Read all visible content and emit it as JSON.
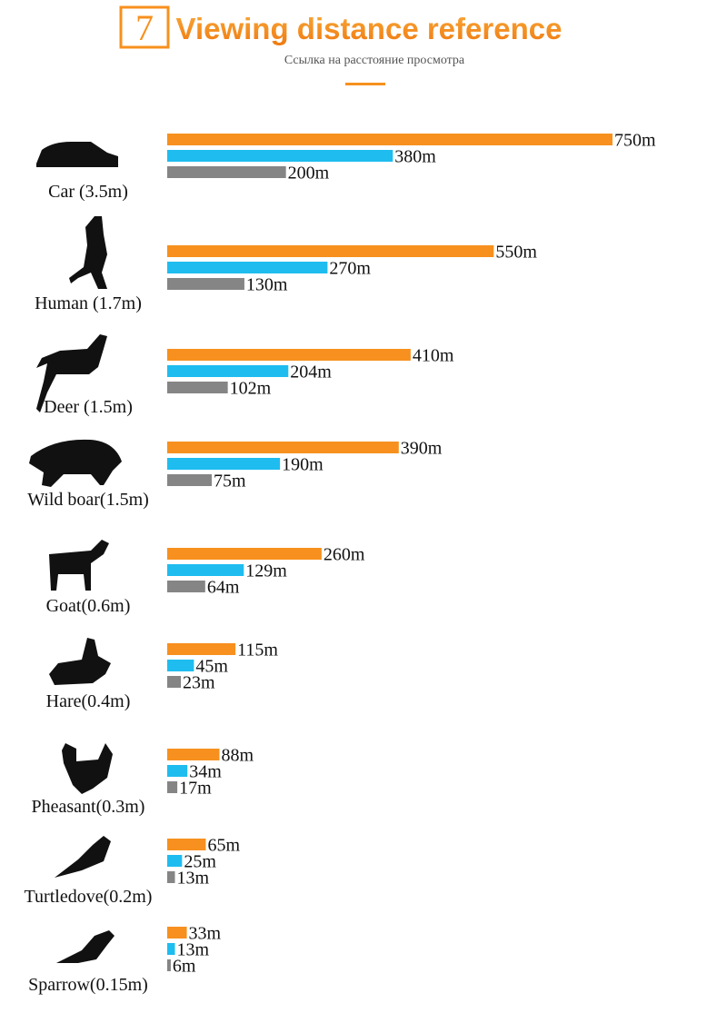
{
  "chart_data": {
    "type": "bar",
    "orientation": "horizontal",
    "section_number": "7",
    "title": "Viewing distance reference",
    "subtitle": "Ссылка на расстояние просмотра",
    "categories": [
      "Car (3.5m)",
      "Human (1.7m)",
      "Deer (1.5m)",
      "Wild boar(1.5m)",
      "Goat(0.6m)",
      "Hare(0.4m)",
      "Pheasant(0.3m)",
      "Turtledove(0.2m)",
      "Sparrow(0.15m)"
    ],
    "series": [
      {
        "color": "#f7901e",
        "values": [
          750,
          550,
          410,
          390,
          260,
          115,
          88,
          65,
          33
        ],
        "value_labels": [
          "750m",
          "550m",
          "410m",
          "390m",
          "260m",
          "115m",
          "88m",
          "65m",
          "33m"
        ]
      },
      {
        "color": "#1fbcef",
        "values": [
          380,
          270,
          204,
          190,
          129,
          45,
          34,
          25,
          13
        ],
        "value_labels": [
          "380m",
          "270m",
          "204m",
          "190m",
          "129m",
          "45m",
          "34m",
          "25m",
          "13m"
        ]
      },
      {
        "color": "#858585",
        "values": [
          200,
          130,
          102,
          75,
          64,
          23,
          17,
          13,
          6
        ],
        "value_labels": [
          "200m",
          "130m",
          "102m",
          "75m",
          "64m",
          "23m",
          "17m",
          "13m",
          "6m"
        ]
      }
    ]
  }
}
